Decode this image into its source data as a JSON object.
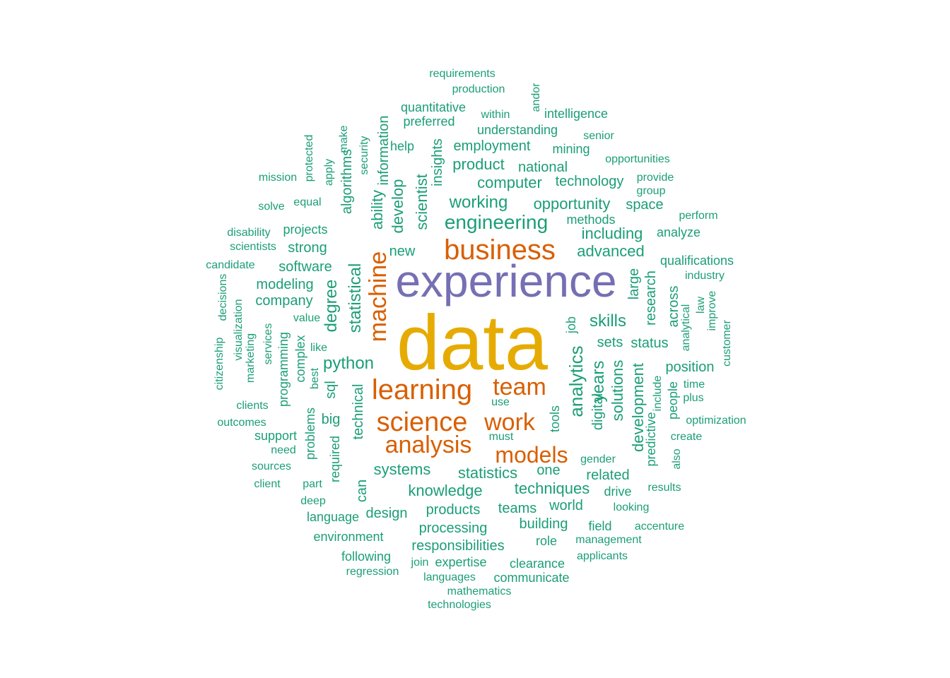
{
  "palette": {
    "gold": "#e6ab02",
    "purple": "#7570b3",
    "orange": "#d95f02",
    "teal": "#1b9e77"
  },
  "words": [
    "data",
    "experience",
    "business",
    "learning",
    "science",
    "machine",
    "team",
    "work",
    "analysis",
    "models",
    "analytics",
    "years",
    "skills",
    "engineering",
    "python",
    "statistical",
    "degree",
    "working",
    "opportunity",
    "systems",
    "statistics",
    "knowledge",
    "techniques",
    "processing",
    "responsibilities",
    "products",
    "teams",
    "world",
    "building",
    "including",
    "advanced",
    "solutions",
    "development",
    "digital",
    "sets",
    "status",
    "position",
    "scientist",
    "develop",
    "ability",
    "algorithms",
    "information",
    "insights",
    "product",
    "computer",
    "technology",
    "employment",
    "national",
    "mining",
    "space",
    "requirements",
    "production",
    "quantitative",
    "within",
    "andor",
    "intelligence",
    "preferred",
    "understanding",
    "senior",
    "help",
    "make",
    "security",
    "protected",
    "apply",
    "mission",
    "opportunities",
    "provide",
    "group",
    "solve",
    "equal",
    "perform",
    "methods",
    "disability",
    "projects",
    "analyze",
    "scientists",
    "strong",
    "new",
    "qualifications",
    "candidate",
    "software",
    "industry",
    "modeling",
    "large",
    "research",
    "across",
    "analytical",
    "law",
    "improve",
    "customer",
    "company",
    "decisions",
    "value",
    "visualization",
    "citizenship",
    "marketing",
    "services",
    "programming",
    "complex",
    "like",
    "best",
    "sql",
    "technical",
    "job",
    "tools",
    "people",
    "include",
    "predictive",
    "time",
    "plus",
    "use",
    "clients",
    "big",
    "outcomes",
    "problems",
    "support",
    "must",
    "optimization",
    "need",
    "create",
    "required",
    "sources",
    "part",
    "one",
    "gender",
    "related",
    "also",
    "client",
    "can",
    "drive",
    "results",
    "deep",
    "design",
    "looking",
    "language",
    "environment",
    "role",
    "field",
    "accenture",
    "management",
    "following",
    "join",
    "expertise",
    "clearance",
    "applicants",
    "regression",
    "languages",
    "communicate",
    "mathematics",
    "technologies"
  ]
}
